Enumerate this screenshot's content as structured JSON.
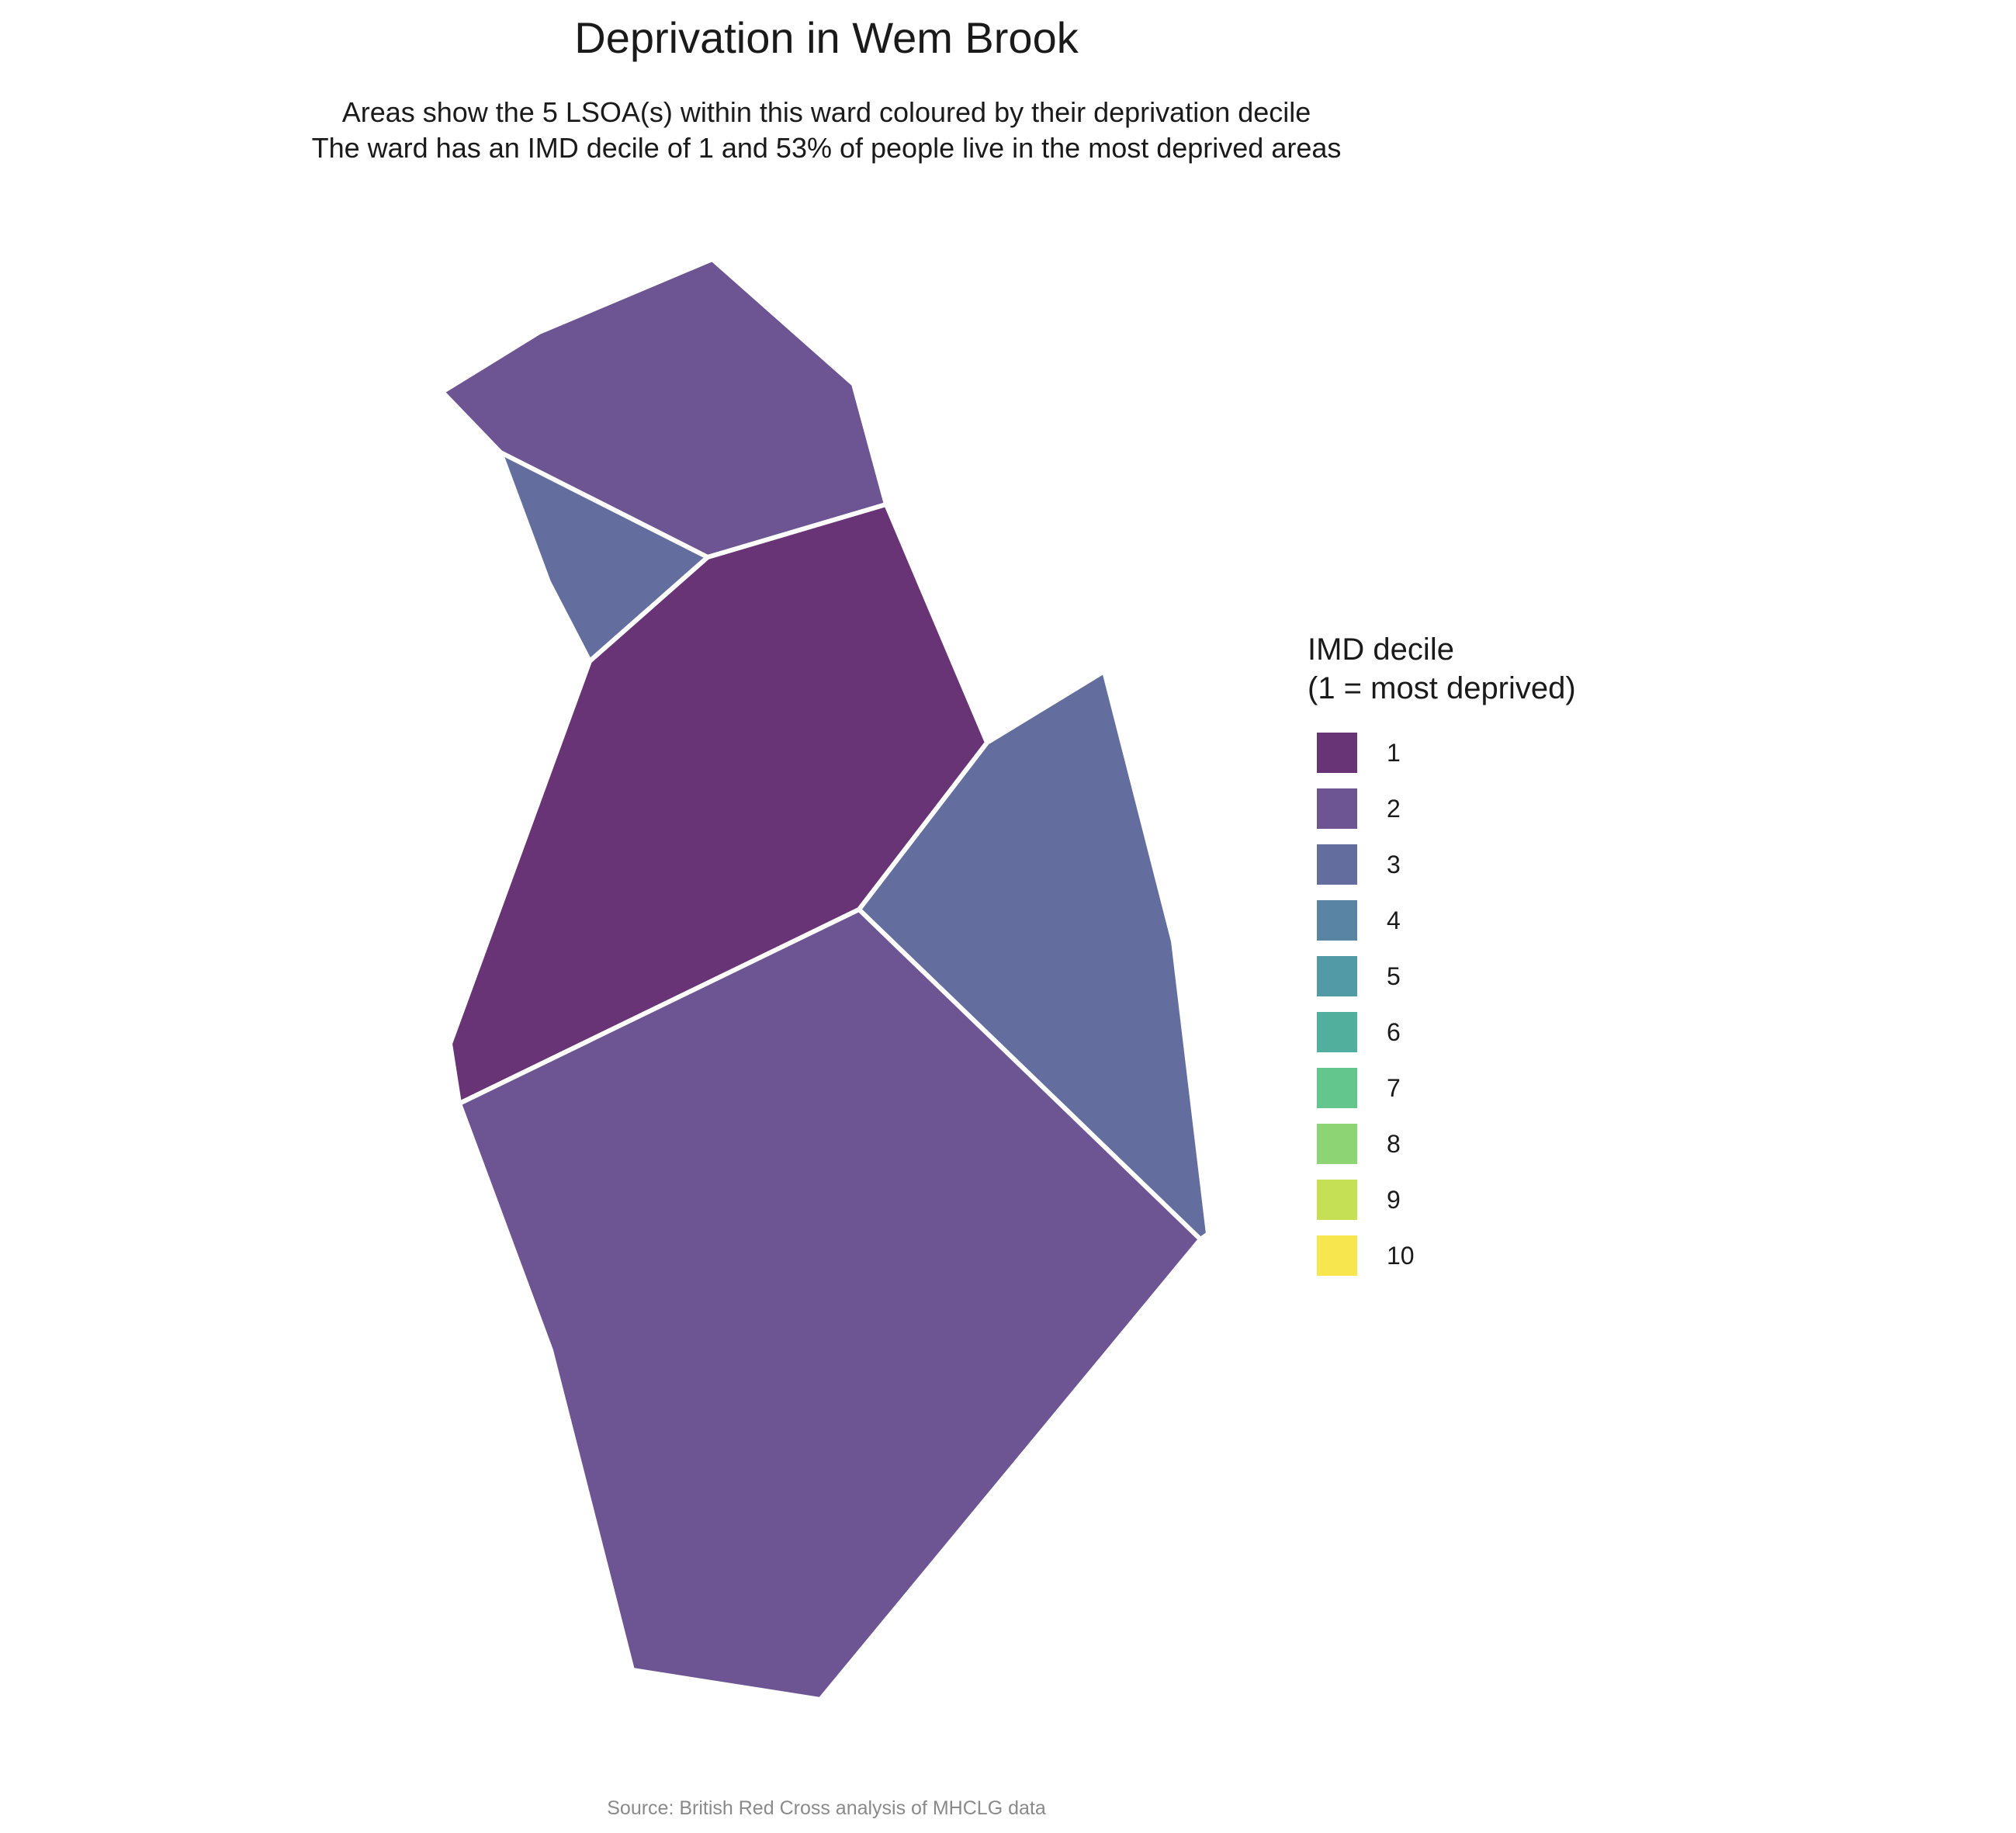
{
  "title": "Deprivation in Wem Brook",
  "subtitle": {
    "line1": "Areas show the 5 LSOA(s) within this ward coloured by their deprivation decile",
    "line2": "The ward has an IMD decile of 1 and 53% of people live in the most deprived areas"
  },
  "legend": {
    "title_line1": "IMD decile",
    "title_line2": "(1 = most deprived)",
    "items": [
      {
        "label": "1",
        "color": "#683475"
      },
      {
        "label": "2",
        "color": "#6D5593"
      },
      {
        "label": "3",
        "color": "#636E9F"
      },
      {
        "label": "4",
        "color": "#5984A3"
      },
      {
        "label": "5",
        "color": "#529AA5"
      },
      {
        "label": "6",
        "color": "#51B09D"
      },
      {
        "label": "7",
        "color": "#62C68D"
      },
      {
        "label": "8",
        "color": "#8DD574"
      },
      {
        "label": "9",
        "color": "#C5E054"
      },
      {
        "label": "10",
        "color": "#F7E64D"
      }
    ]
  },
  "areas": [
    {
      "name": "lsoa-north",
      "decile": 2,
      "color": "#6D5593"
    },
    {
      "name": "lsoa-northwest",
      "decile": 3,
      "color": "#636E9F"
    },
    {
      "name": "lsoa-central",
      "decile": 1,
      "color": "#683475"
    },
    {
      "name": "lsoa-east",
      "decile": 3,
      "color": "#636E9F"
    },
    {
      "name": "lsoa-south",
      "decile": 2,
      "color": "#6D5593"
    }
  ],
  "source": "Source: British Red Cross analysis of MHCLG data"
}
